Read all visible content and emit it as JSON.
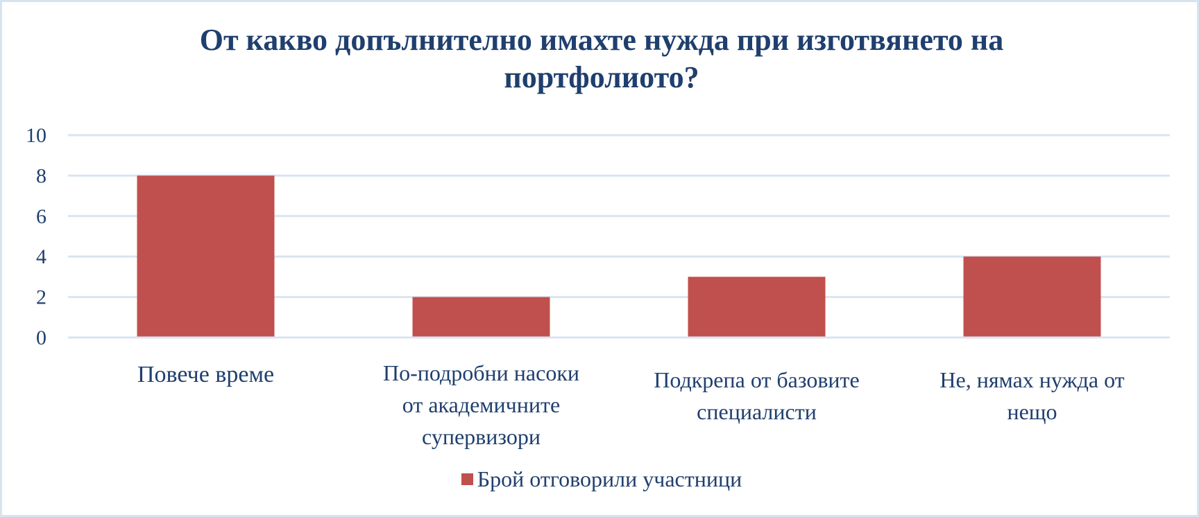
{
  "chart_data": {
    "type": "bar",
    "title": "От какво допълнително имахте нужда при изготвянето на портфолиото?",
    "title_lines": [
      "От какво допълнително имахте нужда при изготвянето на",
      "портфолиото?"
    ],
    "categories": [
      "Повече време",
      "По-подробни насоки от академичните супервизори",
      "Подкрепа от базовите специалисти",
      "Не, нямах нужда от нещо"
    ],
    "category_lines": [
      [
        "Повече време"
      ],
      [
        "По-подробни насоки",
        "от академичните",
        "супервизори"
      ],
      [
        "Подкрепа от базовите",
        "специалисти"
      ],
      [
        "Не, нямах нужда от",
        "нещо"
      ]
    ],
    "series": [
      {
        "name": "Брой отговорили участници",
        "values": [
          8,
          2,
          3,
          4
        ],
        "color": "#c0504d"
      }
    ],
    "ylim": [
      0,
      10
    ],
    "yticks": [
      0,
      2,
      4,
      6,
      8,
      10
    ],
    "grid": true,
    "legend_position": "bottom",
    "gridline_color": "#d9e5f1",
    "text_color": "#1f3f6e"
  }
}
